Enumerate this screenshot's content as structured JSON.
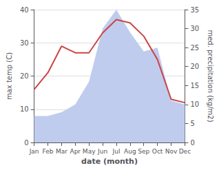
{
  "chart_data": {
    "type": "line",
    "xlabel": "date (month)",
    "ylabel": "max temp (C)",
    "y2label": "med. precipitation (kg/m2)",
    "categories": [
      "Jan",
      "Feb",
      "Mar",
      "Apr",
      "May",
      "Jun",
      "Jul",
      "Aug",
      "Sep",
      "Oct",
      "Nov",
      "Dec"
    ],
    "series": [
      {
        "type": "area",
        "axis": "y2",
        "color": "#c0ccee",
        "values": [
          7,
          7,
          8,
          10,
          16,
          30,
          35,
          29,
          24,
          25,
          11,
          10
        ]
      },
      {
        "type": "line",
        "color": "#cc4444",
        "values": [
          16,
          21,
          29,
          27,
          27,
          33,
          37,
          36,
          32,
          25,
          13,
          12
        ]
      }
    ],
    "ylim": [
      0,
      40
    ],
    "yticks": [
      0,
      10,
      20,
      30,
      40
    ],
    "y2lim": [
      0,
      35
    ],
    "y2ticks": [
      0,
      5,
      10,
      15,
      20,
      25,
      30,
      35
    ],
    "grid": true
  }
}
